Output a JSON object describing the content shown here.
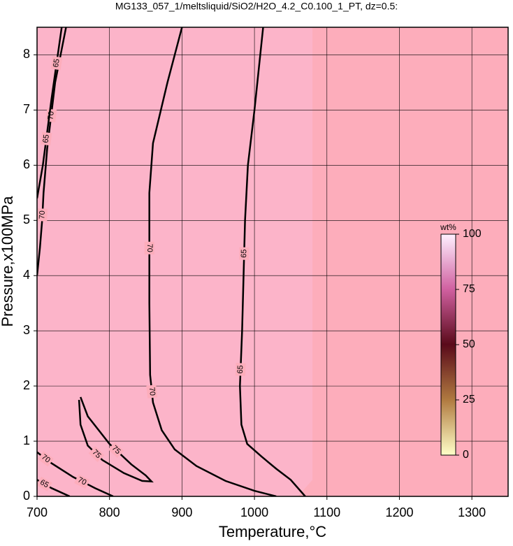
{
  "chart_data": {
    "type": "contour",
    "title": "MG133_057_1/meltsliquid/SiO2/H2O_4.2_C0.100_1_PT, dz=0.5:",
    "x_label": "Temperature,°C",
    "y_label": "Pressure,x100MPa",
    "xlim": [
      700,
      1350
    ],
    "ylim": [
      0,
      8.5
    ],
    "xticks": [
      700,
      800,
      900,
      1000,
      1100,
      1200,
      1300
    ],
    "yticks": [
      0,
      1,
      2,
      3,
      4,
      5,
      6,
      7,
      8
    ],
    "grid": true,
    "background": "#fdadbb",
    "color": "#000000",
    "contours": [
      {
        "level": 70,
        "x": [
          900,
          880,
          860,
          855,
          855,
          856,
          860,
          872,
          890,
          920,
          960,
          1000,
          1030
        ],
        "y": [
          8.5,
          7.5,
          6.4,
          5.5,
          3.5,
          2.2,
          1.7,
          1.2,
          0.85,
          0.55,
          0.28,
          0.1,
          0
        ]
      },
      {
        "level": 65,
        "x": [
          1012,
          1000,
          991,
          987,
          983,
          980,
          982,
          990,
          1010,
          1030,
          1050,
          1070
        ],
        "y": [
          8.5,
          7,
          6,
          5,
          3,
          2,
          1.3,
          0.95,
          0.72,
          0.5,
          0.3,
          0
        ]
      },
      {
        "level": 75,
        "x": [
          760,
          770,
          800,
          830,
          850,
          858,
          845,
          820,
          790,
          770,
          760,
          758
        ],
        "y": [
          1.8,
          1.45,
          0.95,
          0.58,
          0.38,
          0.27,
          0.28,
          0.42,
          0.66,
          0.92,
          1.3,
          1.75
        ]
      },
      {
        "level": 70,
        "x": [
          740,
          725,
          714,
          709,
          707,
          704,
          700
        ],
        "y": [
          8.5,
          7.5,
          6.3,
          5.5,
          5.0,
          4.5,
          4.0
        ]
      },
      {
        "level": 65,
        "x": [
          734,
          720,
          708,
          700
        ],
        "y": [
          8.5,
          7.2,
          6.0,
          5.4
        ]
      },
      {
        "level": 70,
        "x": [
          700,
          720,
          750,
          780,
          805
        ],
        "y": [
          0.8,
          0.6,
          0.35,
          0.15,
          0
        ]
      },
      {
        "level": 65,
        "x": [
          700,
          720,
          745
        ],
        "y": [
          0.3,
          0.15,
          0
        ]
      }
    ],
    "colorbar": {
      "label": "wt%",
      "lim": [
        0,
        100
      ],
      "ticks": [
        0,
        25,
        50,
        75,
        100
      ]
    }
  }
}
